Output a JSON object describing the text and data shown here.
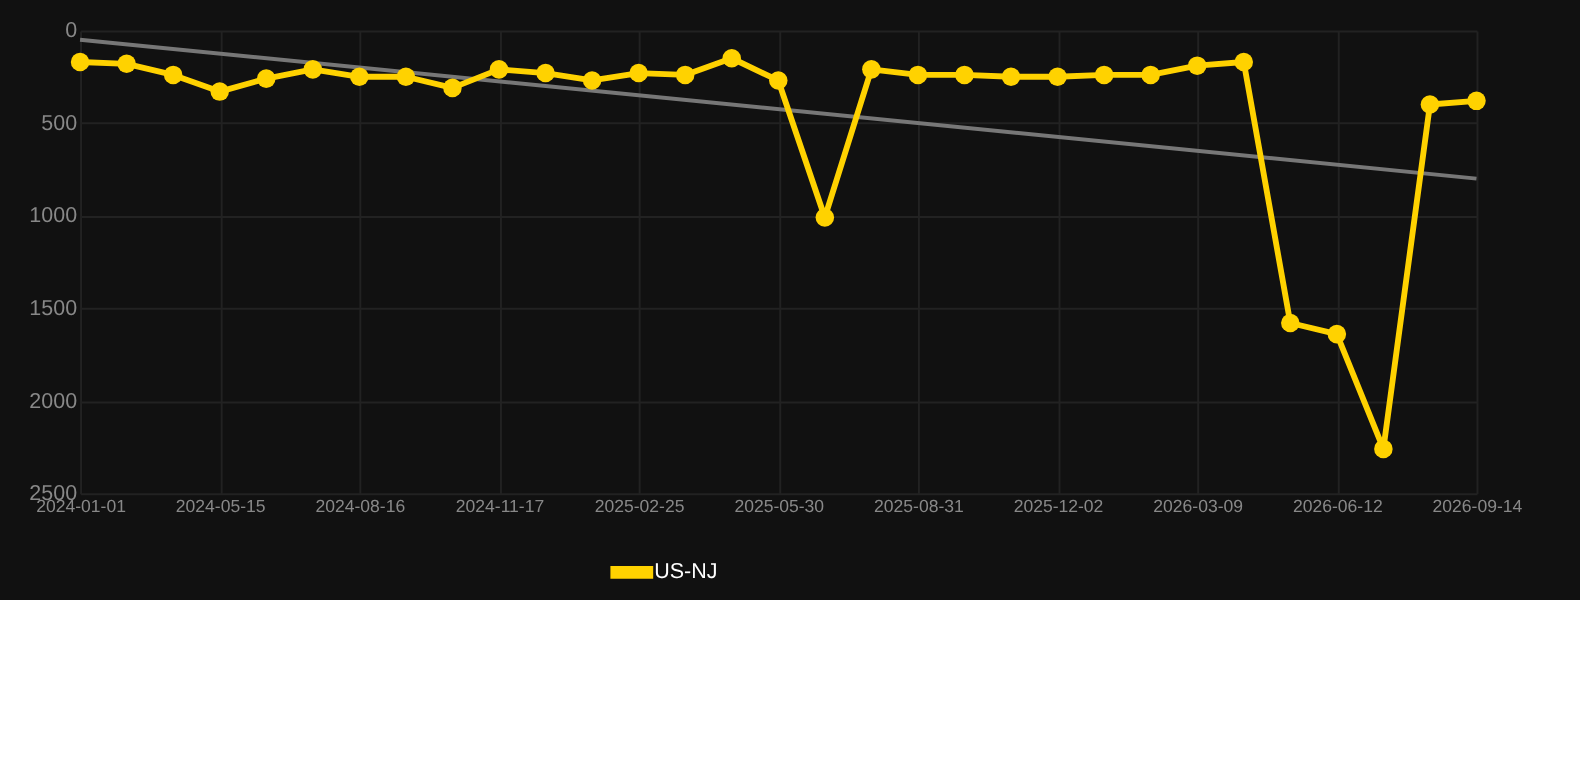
{
  "chart_data": {
    "type": "line",
    "categories": [
      "2024-01-01",
      null,
      null,
      "2024-05-15",
      null,
      null,
      "2024-08-16",
      null,
      null,
      "2024-11-17",
      null,
      null,
      "2025-02-25",
      null,
      null,
      "2025-05-30",
      null,
      null,
      "2025-08-31",
      null,
      null,
      "2025-12-02",
      null,
      null,
      "2026-03-09",
      null,
      null,
      "2026-06-12",
      null,
      null,
      "2026-09-14"
    ],
    "series": [
      {
        "name": "US-NJ",
        "color": "#ffd200",
        "marker": "circle",
        "values": [
          170,
          180,
          240,
          330,
          260,
          210,
          250,
          250,
          310,
          210,
          230,
          270,
          230,
          240,
          150,
          270,
          1010,
          210,
          240,
          240,
          250,
          250,
          240,
          240,
          190,
          170,
          1580,
          1640,
          2260,
          400,
          380
        ]
      },
      {
        "type": "line",
        "color": "#777777",
        "marker": "none",
        "values": [
          50,
          null,
          null,
          null,
          null,
          null,
          null,
          null,
          null,
          null,
          null,
          null,
          null,
          null,
          null,
          null,
          null,
          null,
          null,
          null,
          null,
          null,
          null,
          null,
          null,
          null,
          null,
          null,
          null,
          null,
          800
        ]
      }
    ],
    "ylim": [
      2500,
      0
    ],
    "yticks": [
      0,
      500,
      1000,
      1500,
      2000,
      2500
    ],
    "grid": true,
    "legend": "bottom"
  }
}
